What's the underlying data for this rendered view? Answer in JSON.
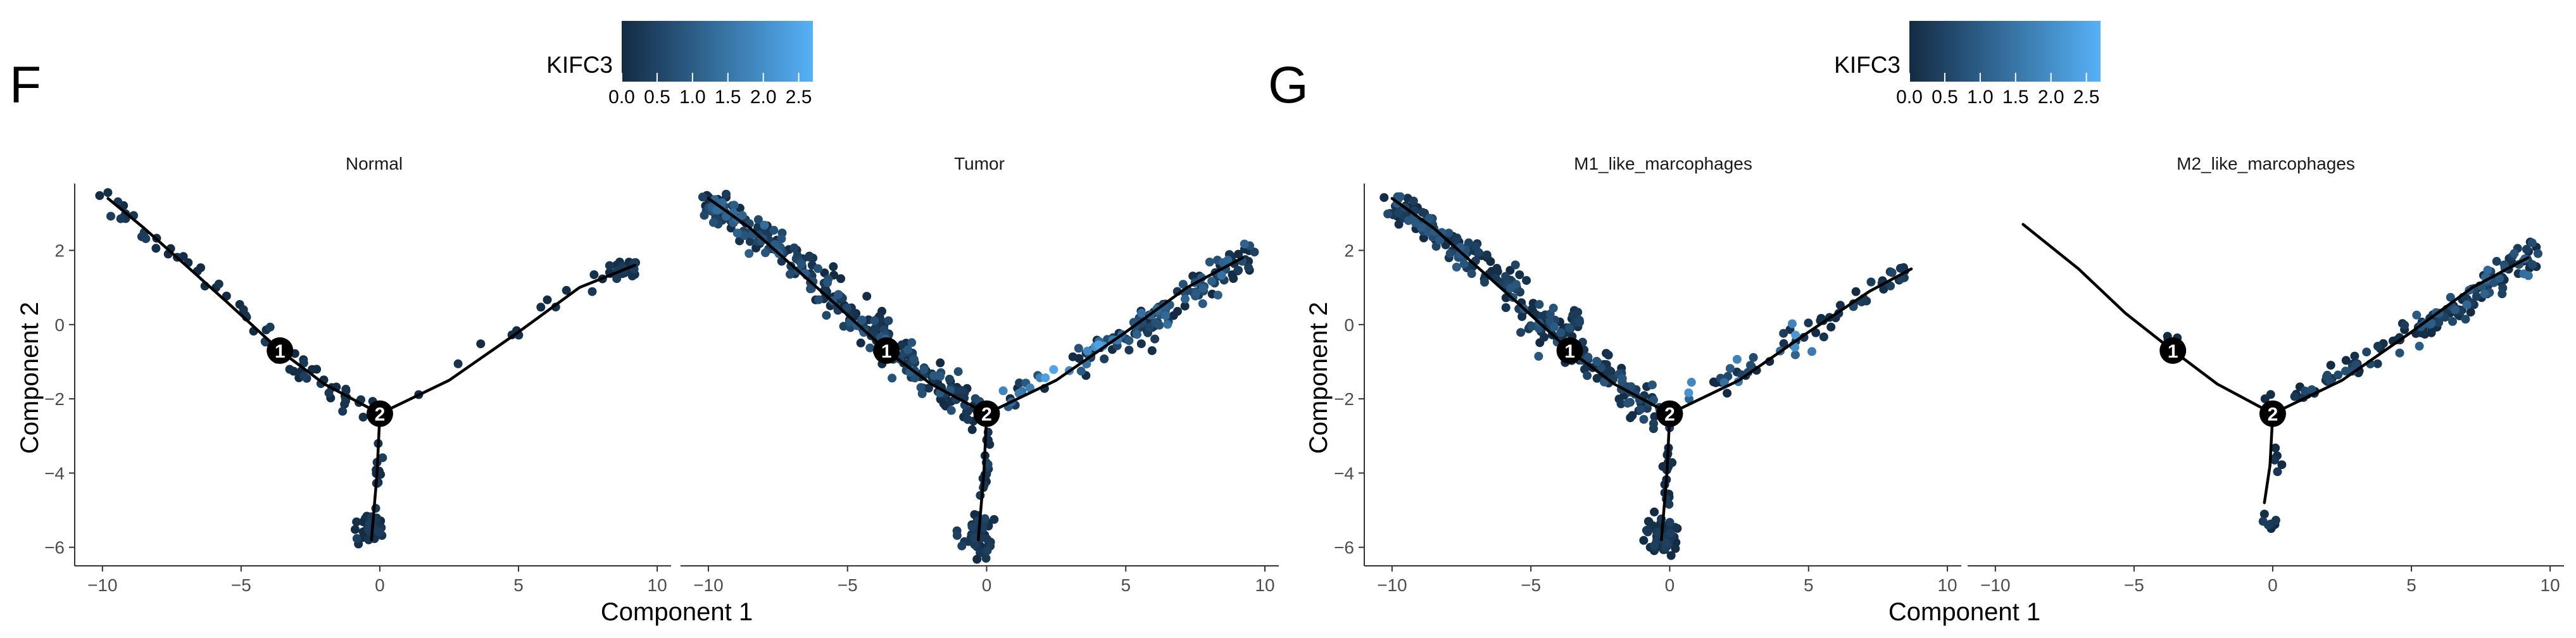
{
  "colors": {
    "low": "#132B43",
    "high": "#56B1F7",
    "axis": "#333333",
    "path": "#000000",
    "node_text": "#ffffff",
    "text": "#000000",
    "tick_text": "#4d4d4d"
  },
  "chart_data": [
    {
      "type": "scatter",
      "panel_letter": "F",
      "legend": {
        "title": "KIFC3",
        "ticks": [
          0.0,
          0.5,
          1.0,
          1.5,
          2.0,
          2.5
        ],
        "tick_labels": [
          "0.0",
          "0.5",
          "1.0",
          "1.5",
          "2.0",
          "2.5"
        ],
        "range": [
          0,
          2.7
        ],
        "placement": "top-center"
      },
      "xlabel": "Component 1",
      "ylabel": "Component 2",
      "xlim": [
        -11,
        10.5
      ],
      "ylim": [
        -6.5,
        3.8
      ],
      "xticks": [
        -10,
        -5,
        0,
        5,
        10
      ],
      "yticks": [
        -6,
        -4,
        -2,
        0,
        2
      ],
      "xtick_labels": [
        "−10",
        "−5",
        "0",
        "5",
        "10"
      ],
      "ytick_labels": [
        "−6",
        "−4",
        "−2",
        "0",
        "2"
      ],
      "grid": false,
      "facets": [
        {
          "title": "Normal",
          "trajectory": {
            "branches": [
              [
                [
                  -9.8,
                  3.4
                ],
                [
                  -8.5,
                  2.6
                ],
                [
                  -7,
                  1.6
                ],
                [
                  -5.5,
                  0.6
                ],
                [
                  -3.6,
                  -0.7
                ],
                [
                  -2,
                  -1.6
                ],
                [
                  0,
                  -2.4
                ]
              ],
              [
                [
                  0,
                  -2.4
                ],
                [
                  2.5,
                  -1.5
                ],
                [
                  5,
                  -0.2
                ],
                [
                  7.2,
                  1
                ],
                [
                  9.2,
                  1.6
                ]
              ],
              [
                [
                  0,
                  -2.4
                ],
                [
                  -0.1,
                  -4
                ],
                [
                  -0.3,
                  -5.8
                ]
              ]
            ],
            "nodes": [
              {
                "label": "1",
                "x": -3.6,
                "y": -0.7
              },
              {
                "label": "2",
                "x": 0,
                "y": -2.4
              }
            ]
          },
          "cells": {
            "segments": [
              {
                "from": [
                  -9.8,
                  3.4
                ],
                "to": [
                  -8.3,
                  2.4
                ],
                "n": 14,
                "spread": 0.2,
                "expr_max": 0.4
              },
              {
                "from": [
                  -8.3,
                  2.4
                ],
                "to": [
                  -5.5,
                  0.8
                ],
                "n": 12,
                "spread": 0.25,
                "expr_max": 0.4
              },
              {
                "from": [
                  -5.5,
                  0.8
                ],
                "to": [
                  -3.6,
                  -0.7
                ],
                "n": 12,
                "spread": 0.25,
                "expr_max": 0.4
              },
              {
                "from": [
                  -3.6,
                  -0.7
                ],
                "to": [
                  -0.6,
                  -2.3
                ],
                "n": 30,
                "spread": 0.3,
                "expr_max": 0.4
              },
              {
                "from": [
                  0.6,
                  -2
                ],
                "to": [
                  8.2,
                  1.3
                ],
                "n": 14,
                "spread": 0.2,
                "expr_max": 0.4
              },
              {
                "from": [
                  0,
                  -2.8
                ],
                "to": [
                  -0.1,
                  -4.5
                ],
                "n": 10,
                "spread": 0.12,
                "expr_max": 0.4
              }
            ],
            "blobs": [
              {
                "center": [
                  8.9,
                  1.5
                ],
                "rx": 0.55,
                "ry": 0.22,
                "n": 30,
                "expr_max": 0.4
              },
              {
                "center": [
                  -0.25,
                  -5.4
                ],
                "rx": 0.45,
                "ry": 0.45,
                "n": 45,
                "expr_max": 0.4
              }
            ]
          }
        },
        {
          "title": "Tumor",
          "trajectory": {
            "branches": [
              [
                [
                  -10,
                  3.4
                ],
                [
                  -8.5,
                  2.6
                ],
                [
                  -7,
                  1.6
                ],
                [
                  -5.5,
                  0.6
                ],
                [
                  -3.6,
                  -0.7
                ],
                [
                  -2,
                  -1.6
                ],
                [
                  0,
                  -2.4
                ]
              ],
              [
                [
                  0,
                  -2.4
                ],
                [
                  2.5,
                  -1.5
                ],
                [
                  5,
                  -0.2
                ],
                [
                  7.2,
                  1
                ],
                [
                  9.2,
                  1.8
                ]
              ],
              [
                [
                  0,
                  -2.4
                ],
                [
                  -0.1,
                  -4
                ],
                [
                  -0.3,
                  -5.8
                ]
              ]
            ],
            "nodes": [
              {
                "label": "1",
                "x": -3.6,
                "y": -0.7
              },
              {
                "label": "2",
                "x": 0,
                "y": -2.4
              }
            ]
          },
          "cells": {
            "segments": [
              {
                "from": [
                  -10.1,
                  3.4
                ],
                "to": [
                  -6.5,
                  1.5
                ],
                "n": 130,
                "spread": 0.35,
                "expr_max": 1.4
              },
              {
                "from": [
                  -6.5,
                  1.5
                ],
                "to": [
                  -3.6,
                  -0.6
                ],
                "n": 80,
                "spread": 0.4,
                "expr_max": 1.2
              },
              {
                "from": [
                  -3.6,
                  -0.6
                ],
                "to": [
                  -0.4,
                  -2.4
                ],
                "n": 90,
                "spread": 0.4,
                "expr_max": 1.0
              },
              {
                "from": [
                  0.5,
                  -2.1
                ],
                "to": [
                  5,
                  -0.3
                ],
                "n": 45,
                "spread": 0.3,
                "expr_max": 2.5
              },
              {
                "from": [
                  5,
                  -0.3
                ],
                "to": [
                  9.6,
                  2
                ],
                "n": 120,
                "spread": 0.35,
                "expr_max": 1.4
              },
              {
                "from": [
                  0,
                  -2.8
                ],
                "to": [
                  -0.1,
                  -4.8
                ],
                "n": 18,
                "spread": 0.15,
                "expr_max": 0.6
              }
            ],
            "blobs": [
              {
                "center": [
                  -0.3,
                  -5.6
                ],
                "rx": 0.5,
                "ry": 0.5,
                "n": 60,
                "expr_max": 0.5
              },
              {
                "center": [
                  -3.8,
                  -0.1
                ],
                "rx": 0.3,
                "ry": 0.5,
                "n": 12,
                "expr_max": 0.8
              }
            ]
          }
        }
      ]
    },
    {
      "type": "scatter",
      "panel_letter": "G",
      "legend": {
        "title": "KIFC3",
        "ticks": [
          0.0,
          0.5,
          1.0,
          1.5,
          2.0,
          2.5
        ],
        "tick_labels": [
          "0.0",
          "0.5",
          "1.0",
          "1.5",
          "2.0",
          "2.5"
        ],
        "range": [
          0,
          2.7
        ],
        "placement": "top-center"
      },
      "xlabel": "Component 1",
      "ylabel": "Component 2",
      "xlim": [
        -11,
        10.5
      ],
      "ylim": [
        -6.5,
        3.8
      ],
      "xticks": [
        -10,
        -5,
        0,
        5,
        10
      ],
      "yticks": [
        -6,
        -4,
        -2,
        0,
        2
      ],
      "xtick_labels": [
        "−10",
        "−5",
        "0",
        "5",
        "10"
      ],
      "ytick_labels": [
        "−6",
        "−4",
        "−2",
        "0",
        "2"
      ],
      "grid": false,
      "facets": [
        {
          "title": "M1_like_marcophages",
          "trajectory": {
            "branches": [
              [
                [
                  -10,
                  3.4
                ],
                [
                  -8.5,
                  2.6
                ],
                [
                  -7,
                  1.6
                ],
                [
                  -5.5,
                  0.6
                ],
                [
                  -3.6,
                  -0.7
                ],
                [
                  -2,
                  -1.6
                ],
                [
                  0,
                  -2.4
                ]
              ],
              [
                [
                  0,
                  -2.4
                ],
                [
                  2.5,
                  -1.5
                ],
                [
                  5,
                  -0.2
                ],
                [
                  7.2,
                  0.9
                ],
                [
                  8.7,
                  1.5
                ]
              ],
              [
                [
                  0,
                  -2.4
                ],
                [
                  -0.1,
                  -4
                ],
                [
                  -0.3,
                  -5.8
                ]
              ]
            ],
            "nodes": [
              {
                "label": "1",
                "x": -3.6,
                "y": -0.7
              },
              {
                "label": "2",
                "x": 0,
                "y": -2.4
              }
            ]
          },
          "cells": {
            "segments": [
              {
                "from": [
                  -10.1,
                  3.4
                ],
                "to": [
                  -6.5,
                  1.5
                ],
                "n": 120,
                "spread": 0.35,
                "expr_max": 1.0
              },
              {
                "from": [
                  -6.5,
                  1.5
                ],
                "to": [
                  -3.6,
                  -0.6
                ],
                "n": 80,
                "spread": 0.4,
                "expr_max": 1.0
              },
              {
                "from": [
                  -3.6,
                  -0.6
                ],
                "to": [
                  -0.4,
                  -2.4
                ],
                "n": 90,
                "spread": 0.4,
                "expr_max": 0.9
              },
              {
                "from": [
                  0.5,
                  -2.1
                ],
                "to": [
                  5,
                  -0.3
                ],
                "n": 35,
                "spread": 0.3,
                "expr_max": 2.3
              },
              {
                "from": [
                  5,
                  -0.3
                ],
                "to": [
                  8.7,
                  1.6
                ],
                "n": 30,
                "spread": 0.3,
                "expr_max": 0.6
              },
              {
                "from": [
                  0,
                  -2.8
                ],
                "to": [
                  -0.1,
                  -4.8
                ],
                "n": 18,
                "spread": 0.15,
                "expr_max": 0.5
              }
            ],
            "blobs": [
              {
                "center": [
                  -0.3,
                  -5.7
                ],
                "rx": 0.5,
                "ry": 0.5,
                "n": 60,
                "expr_max": 0.5
              },
              {
                "center": [
                  -3.4,
                  -0.1
                ],
                "rx": 0.3,
                "ry": 0.5,
                "n": 12,
                "expr_max": 0.5
              }
            ]
          }
        },
        {
          "title": "M2_like_marcophages",
          "trajectory": {
            "branches": [
              [
                [
                  -9,
                  2.7
                ],
                [
                  -7,
                  1.5
                ],
                [
                  -5.3,
                  0.3
                ],
                [
                  -3.6,
                  -0.7
                ],
                [
                  -2,
                  -1.6
                ],
                [
                  0,
                  -2.4
                ]
              ],
              [
                [
                  0,
                  -2.4
                ],
                [
                  2.5,
                  -1.5
                ],
                [
                  5,
                  -0.2
                ],
                [
                  7.2,
                  1
                ],
                [
                  9.2,
                  1.8
                ]
              ],
              [
                [
                  0,
                  -2.4
                ],
                [
                  -0.1,
                  -3.8
                ],
                [
                  -0.3,
                  -4.8
                ]
              ]
            ],
            "nodes": [
              {
                "label": "1",
                "x": -3.6,
                "y": -0.7
              },
              {
                "label": "2",
                "x": 0,
                "y": -2.4
              }
            ]
          },
          "cells": {
            "segments": [
              {
                "from": [
                  0.8,
                  -1.9
                ],
                "to": [
                  5,
                  -0.3
                ],
                "n": 40,
                "spread": 0.25,
                "expr_max": 0.8
              },
              {
                "from": [
                  5,
                  -0.3
                ],
                "to": [
                  9.6,
                  2
                ],
                "n": 120,
                "spread": 0.35,
                "expr_max": 1.4
              },
              {
                "from": [
                  0.1,
                  -3.2
                ],
                "to": [
                  0.2,
                  -4.5
                ],
                "n": 6,
                "spread": 0.15,
                "expr_max": 0.4
              }
            ],
            "blobs": [
              {
                "center": [
                  -3.5,
                  -0.35
                ],
                "rx": 0.25,
                "ry": 0.25,
                "n": 5,
                "expr_max": 0.3
              },
              {
                "center": [
                  -0.1,
                  -5.3
                ],
                "rx": 0.3,
                "ry": 0.25,
                "n": 8,
                "expr_max": 0.4
              },
              {
                "center": [
                  -0.2,
                  -1.95
                ],
                "rx": 0.15,
                "ry": 0.1,
                "n": 2,
                "expr_max": 0.3
              }
            ]
          }
        }
      ]
    }
  ]
}
